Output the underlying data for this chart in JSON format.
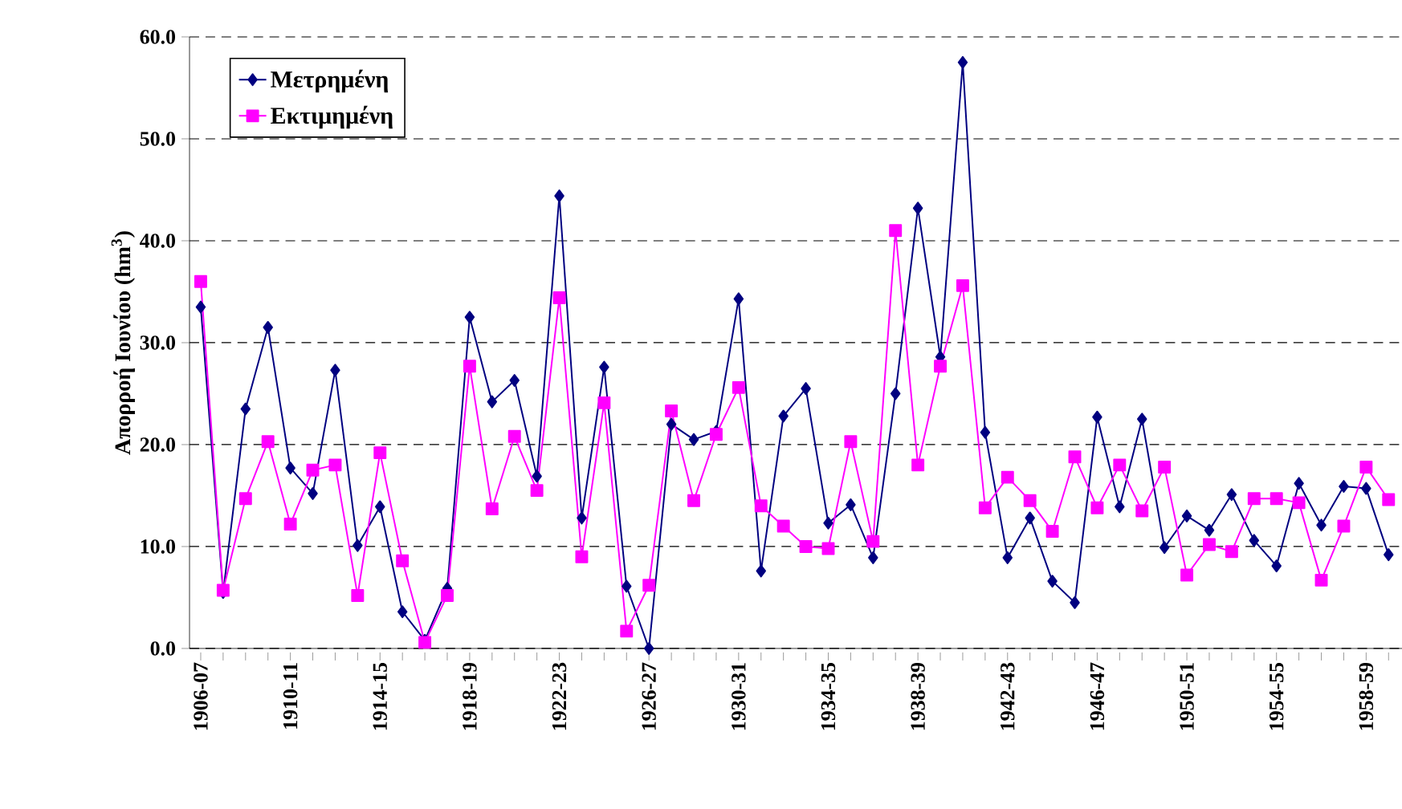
{
  "chart_data": {
    "type": "line",
    "ylabel": "Απορροή Ιουνίου (hm$^{3}$)",
    "categories": [
      "1906-07",
      null,
      null,
      null,
      "1910-11",
      null,
      null,
      null,
      "1914-15",
      null,
      null,
      null,
      "1918-19",
      null,
      null,
      null,
      "1922-23",
      null,
      null,
      null,
      "1926-27",
      null,
      null,
      null,
      "1930-31",
      null,
      null,
      null,
      "1934-35",
      null,
      null,
      null,
      "1938-39",
      null,
      null,
      null,
      "1942-43",
      null,
      null,
      null,
      "1946-47",
      null,
      null,
      null,
      "1950-51",
      null,
      null,
      null,
      "1954-55",
      null,
      null,
      null,
      "1958-59",
      null
    ],
    "series": [
      {
        "name": "Μετρημένη",
        "color": "#000080",
        "marker": "diamond",
        "values": [
          33.5,
          5.5,
          23.5,
          31.5,
          17.7,
          15.2,
          27.3,
          10.1,
          13.9,
          3.6,
          0.8,
          5.9,
          32.5,
          24.2,
          26.3,
          16.9,
          44.4,
          12.8,
          27.6,
          6.1,
          0.0,
          22.0,
          20.5,
          21.3,
          34.3,
          7.6,
          22.8,
          25.5,
          12.3,
          14.1,
          8.9,
          25.0,
          43.2,
          28.6,
          57.5,
          21.2,
          8.9,
          12.8,
          6.6,
          4.5,
          22.7,
          13.9,
          22.5,
          9.9,
          13.0,
          11.6,
          15.1,
          10.6,
          8.1,
          16.2,
          12.1,
          15.9,
          15.7,
          9.2
        ]
      },
      {
        "name": "Εκτιμημένη",
        "color": "#ff00ff",
        "marker": "square",
        "values": [
          36.0,
          5.7,
          14.7,
          20.3,
          12.2,
          17.5,
          18.0,
          5.2,
          19.2,
          8.6,
          0.6,
          5.2,
          27.7,
          13.7,
          20.8,
          15.5,
          34.4,
          9.0,
          24.1,
          1.7,
          6.2,
          23.3,
          14.5,
          21.0,
          25.6,
          14.0,
          12.0,
          10.0,
          9.8,
          20.3,
          10.5,
          41.0,
          18.0,
          27.7,
          35.6,
          13.8,
          16.8,
          14.5,
          11.5,
          18.8,
          13.8,
          18.0,
          13.5,
          17.8,
          7.2,
          10.2,
          9.5,
          14.7,
          14.7,
          14.3,
          6.7,
          12.0,
          17.8,
          14.6
        ]
      }
    ],
    "ylim": [
      0,
      60
    ],
    "yticks": [
      {
        "value": 0,
        "label": "0.0"
      },
      {
        "value": 10,
        "label": "10.0"
      },
      {
        "value": 20,
        "label": "20.0"
      },
      {
        "value": 30,
        "label": "30.0"
      },
      {
        "value": 40,
        "label": "40.0"
      },
      {
        "value": 50,
        "label": "50.0"
      },
      {
        "value": 60,
        "label": "60.0"
      }
    ],
    "grid": "y",
    "legend": "top left",
    "line_style": "solid"
  }
}
